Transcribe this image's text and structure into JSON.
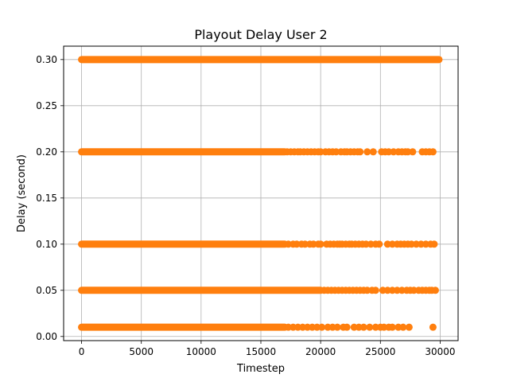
{
  "chart_data": {
    "type": "scatter",
    "title": "Playout Delay User 2",
    "xlabel": "Timestep",
    "ylabel": "Delay (second)",
    "xlim": [
      -1500,
      31500
    ],
    "ylim": [
      -0.0045,
      0.3145
    ],
    "xticks": [
      0,
      5000,
      10000,
      15000,
      20000,
      25000,
      30000
    ],
    "xtick_labels": [
      "0",
      "5000",
      "10000",
      "15000",
      "20000",
      "25000",
      "30000"
    ],
    "yticks": [
      0.0,
      0.05,
      0.1,
      0.15,
      0.2,
      0.25,
      0.3
    ],
    "ytick_labels": [
      "0.00",
      "0.05",
      "0.10",
      "0.15",
      "0.20",
      "0.25",
      "0.30"
    ],
    "grid": true,
    "marker_color": "#ff7f0e",
    "series": [
      {
        "y": 0.3,
        "x_ranges": [
          [
            0,
            29900
          ]
        ],
        "x": []
      },
      {
        "y": 0.2,
        "x_ranges": [
          [
            0,
            17000
          ]
        ],
        "x": [
          17200,
          17500,
          17800,
          18100,
          18300,
          18600,
          18900,
          19200,
          19500,
          19800,
          20000,
          20400,
          20700,
          21000,
          21300,
          21700,
          22000,
          22200,
          22500,
          22800,
          23100,
          23300,
          23900,
          24400,
          25100,
          25400,
          25700,
          26100,
          26500,
          26800,
          27100,
          27300,
          27700,
          28500,
          28800,
          29100,
          29400
        ]
      },
      {
        "y": 0.1,
        "x_ranges": [
          [
            0,
            17000
          ]
        ],
        "x": [
          17300,
          17700,
          18000,
          18400,
          18700,
          19100,
          19400,
          19800,
          20000,
          20500,
          20800,
          21100,
          21400,
          21600,
          21800,
          22100,
          22400,
          22600,
          22900,
          23200,
          23500,
          23800,
          24200,
          24600,
          24900,
          25600,
          26000,
          26400,
          26700,
          27000,
          27300,
          27600,
          28000,
          28400,
          28800,
          29200,
          29500
        ]
      },
      {
        "y": 0.05,
        "x_ranges": [
          [
            0,
            20000
          ]
        ],
        "x": [
          20300,
          20600,
          20900,
          21200,
          21500,
          21800,
          22100,
          22400,
          22700,
          23000,
          23300,
          23600,
          23900,
          24300,
          24600,
          25200,
          25600,
          26000,
          26400,
          26800,
          27200,
          27500,
          27800,
          28200,
          28500,
          28800,
          29100,
          29300,
          29600
        ]
      },
      {
        "y": 0.01,
        "x_ranges": [
          [
            0,
            17000
          ]
        ],
        "x": [
          17300,
          17700,
          18100,
          18500,
          18900,
          19300,
          19700,
          20100,
          20600,
          21000,
          21400,
          21900,
          22200,
          22800,
          23200,
          23600,
          24100,
          24600,
          25000,
          25300,
          25700,
          26000,
          26500,
          26900,
          27400,
          29400
        ]
      }
    ]
  }
}
